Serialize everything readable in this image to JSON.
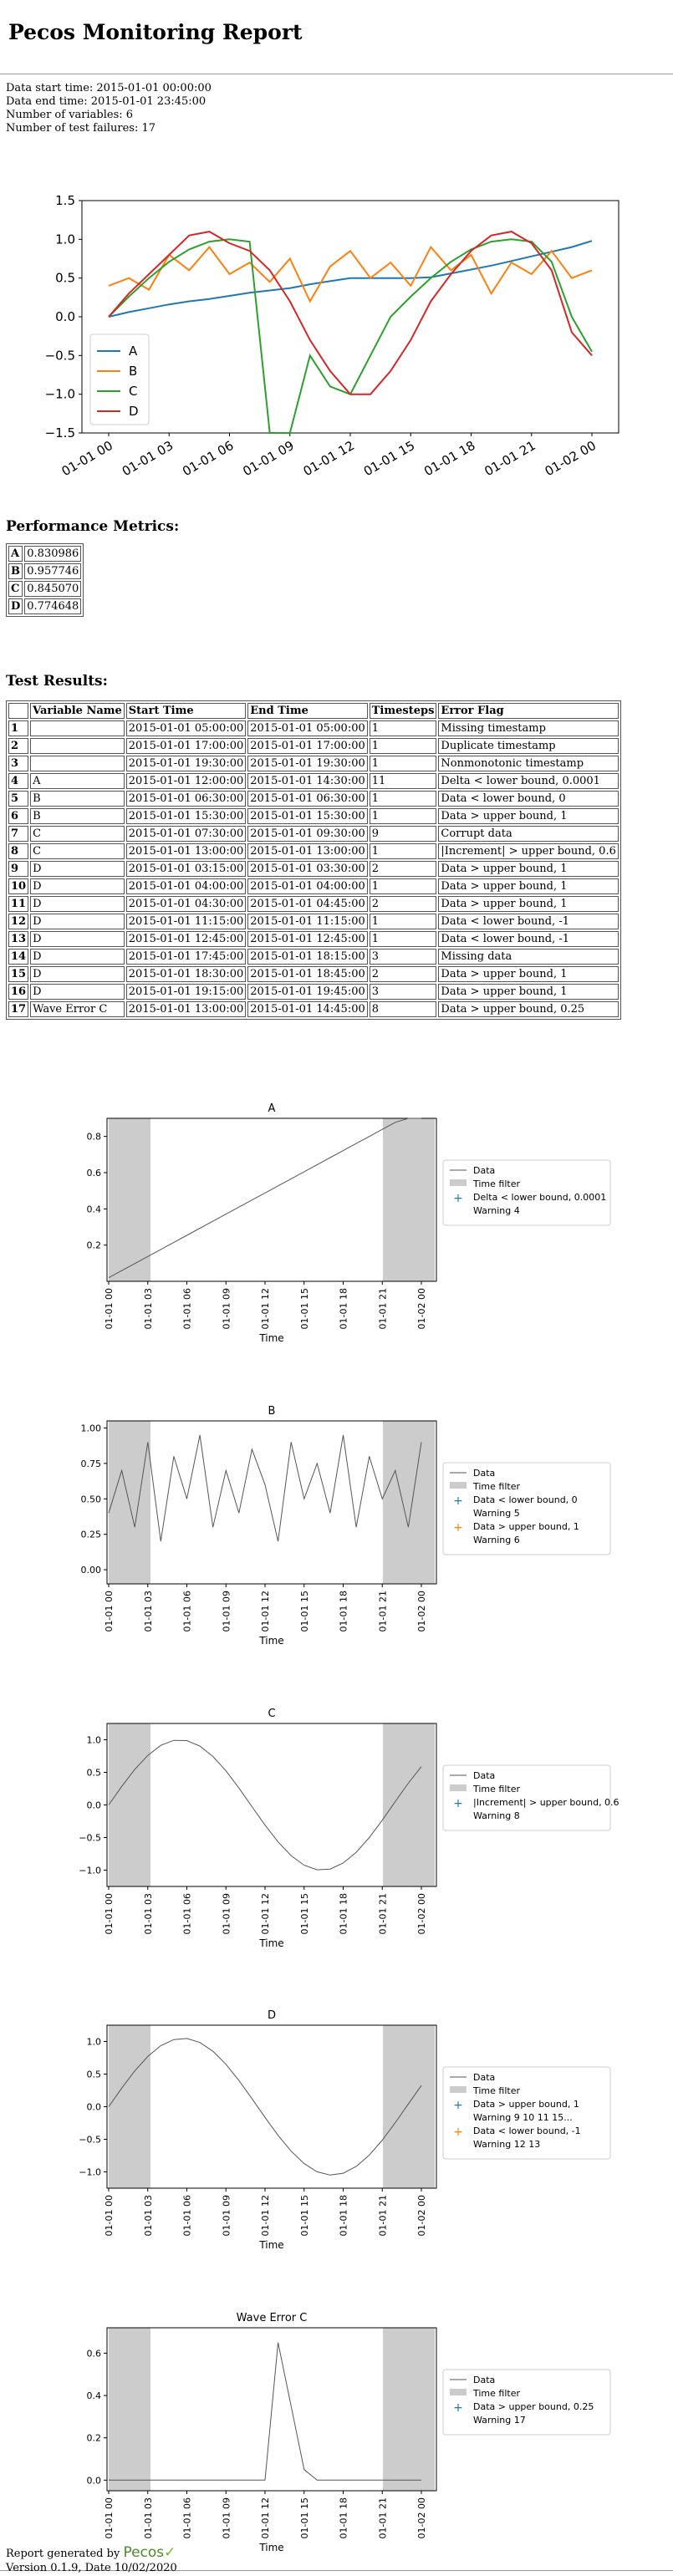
{
  "report_title": "Pecos Monitoring Report",
  "summary": {
    "start": "Data start time: 2015-01-01 00:00:00",
    "end": "Data end time: 2015-01-01 23:45:00",
    "variables": "Number of variables: 6",
    "failures": "Number of test failures: 17"
  },
  "performance": {
    "heading": "Performance Metrics:",
    "rows": [
      {
        "name": "A",
        "value": "0.830986"
      },
      {
        "name": "B",
        "value": "0.957746"
      },
      {
        "name": "C",
        "value": "0.845070"
      },
      {
        "name": "D",
        "value": "0.774648"
      }
    ]
  },
  "tests": {
    "heading": "Test Results:",
    "columns": [
      "",
      "Variable Name",
      "Start Time",
      "End Time",
      "Timesteps",
      "Error Flag"
    ],
    "rows": [
      [
        "1",
        "",
        "2015-01-01 05:00:00",
        "2015-01-01 05:00:00",
        "1",
        "Missing timestamp"
      ],
      [
        "2",
        "",
        "2015-01-01 17:00:00",
        "2015-01-01 17:00:00",
        "1",
        "Duplicate timestamp"
      ],
      [
        "3",
        "",
        "2015-01-01 19:30:00",
        "2015-01-01 19:30:00",
        "1",
        "Nonmonotonic timestamp"
      ],
      [
        "4",
        "A",
        "2015-01-01 12:00:00",
        "2015-01-01 14:30:00",
        "11",
        "Delta < lower bound, 0.0001"
      ],
      [
        "5",
        "B",
        "2015-01-01 06:30:00",
        "2015-01-01 06:30:00",
        "1",
        "Data < lower bound, 0"
      ],
      [
        "6",
        "B",
        "2015-01-01 15:30:00",
        "2015-01-01 15:30:00",
        "1",
        "Data > upper bound, 1"
      ],
      [
        "7",
        "C",
        "2015-01-01 07:30:00",
        "2015-01-01 09:30:00",
        "9",
        "Corrupt data"
      ],
      [
        "8",
        "C",
        "2015-01-01 13:00:00",
        "2015-01-01 13:00:00",
        "1",
        "|Increment| > upper bound, 0.6"
      ],
      [
        "9",
        "D",
        "2015-01-01 03:15:00",
        "2015-01-01 03:30:00",
        "2",
        "Data > upper bound, 1"
      ],
      [
        "10",
        "D",
        "2015-01-01 04:00:00",
        "2015-01-01 04:00:00",
        "1",
        "Data > upper bound, 1"
      ],
      [
        "11",
        "D",
        "2015-01-01 04:30:00",
        "2015-01-01 04:45:00",
        "2",
        "Data > upper bound, 1"
      ],
      [
        "12",
        "D",
        "2015-01-01 11:15:00",
        "2015-01-01 11:15:00",
        "1",
        "Data < lower bound, -1"
      ],
      [
        "13",
        "D",
        "2015-01-01 12:45:00",
        "2015-01-01 12:45:00",
        "1",
        "Data < lower bound, -1"
      ],
      [
        "14",
        "D",
        "2015-01-01 17:45:00",
        "2015-01-01 18:15:00",
        "3",
        "Missing data"
      ],
      [
        "15",
        "D",
        "2015-01-01 18:30:00",
        "2015-01-01 18:45:00",
        "2",
        "Data > upper bound, 1"
      ],
      [
        "16",
        "D",
        "2015-01-01 19:15:00",
        "2015-01-01 19:45:00",
        "3",
        "Data > upper bound, 1"
      ],
      [
        "17",
        "Wave Error C",
        "2015-01-01 13:00:00",
        "2015-01-01 14:45:00",
        "8",
        "Data > upper bound, 0.25"
      ]
    ]
  },
  "footer": {
    "generated": "Report generated by",
    "brand": "Pecos",
    "version": "Version 0.1.9, Date 10/02/2020"
  },
  "colors": {
    "A": "#1f77b4",
    "B": "#ff7f0e",
    "C": "#2ca02c",
    "D": "#d62728",
    "data": "#555555",
    "filter": "#cccccc"
  },
  "chart_data": [
    {
      "type": "line",
      "x_ticks": [
        "01-01 00",
        "01-01 03",
        "01-01 06",
        "01-01 09",
        "01-01 12",
        "01-01 15",
        "01-01 18",
        "01-01 21",
        "01-02 00"
      ],
      "ylim": [
        -1.5,
        1.5
      ],
      "y_ticks": [
        "1.5",
        "1.0",
        "0.5",
        "0.0",
        "−0.5",
        "−1.0",
        "−1.5"
      ],
      "legend": "lower-left",
      "series": [
        {
          "name": "A",
          "color": "#1f77b4",
          "values": [
            0,
            0.06,
            0.11,
            0.16,
            0.2,
            0.23,
            0.27,
            0.31,
            0.34,
            0.37,
            0.42,
            0.46,
            0.5,
            0.5,
            0.5,
            0.5,
            0.51,
            0.56,
            0.61,
            0.66,
            0.72,
            0.78,
            0.84,
            0.9,
            0.98
          ]
        },
        {
          "name": "B",
          "color": "#ff7f0e",
          "values": [
            0.4,
            0.5,
            0.35,
            0.8,
            0.6,
            0.9,
            0.55,
            0.7,
            0.45,
            0.75,
            0.2,
            0.65,
            0.85,
            0.5,
            0.7,
            0.4,
            0.9,
            0.6,
            0.8,
            0.3,
            0.7,
            0.55,
            0.85,
            0.5,
            0.6
          ]
        },
        {
          "name": "C",
          "color": "#2ca02c",
          "values": [
            0,
            0.26,
            0.5,
            0.71,
            0.87,
            0.97,
            1,
            0.97,
            -1.6,
            -1.6,
            -0.5,
            -0.9,
            -1.0,
            -0.5,
            0.0,
            0.26,
            0.5,
            0.71,
            0.87,
            0.97,
            1,
            0.97,
            0.71,
            0.0,
            -0.45
          ]
        },
        {
          "name": "D",
          "color": "#d62728",
          "values": [
            0,
            0.3,
            0.55,
            0.8,
            1.05,
            1.1,
            0.95,
            0.85,
            0.6,
            0.2,
            -0.3,
            -0.7,
            -1.0,
            -1.0,
            -0.7,
            -0.3,
            0.2,
            0.55,
            0.85,
            1.05,
            1.1,
            0.95,
            0.6,
            -0.2,
            -0.5
          ]
        }
      ]
    },
    {
      "type": "line",
      "title": "A",
      "xlabel": "Time",
      "ylim": [
        0,
        0.9
      ],
      "y_ticks": [
        "0.8",
        "0.6",
        "0.4",
        "0.2"
      ],
      "x_ticks": [
        "01-01 00",
        "01-01 03",
        "01-01 06",
        "01-01 09",
        "01-01 12",
        "01-01 15",
        "01-01 18",
        "01-01 21",
        "01-02 00"
      ],
      "legend": [
        "Data",
        "Time filter",
        "Delta < lower bound, 0.0001\nWarning 4"
      ]
    },
    {
      "type": "line",
      "title": "B",
      "xlabel": "Time",
      "ylim": [
        -0.1,
        1.05
      ],
      "y_ticks": [
        "1.00",
        "0.75",
        "0.50",
        "0.25",
        "0.00"
      ],
      "x_ticks": [
        "01-01 00",
        "01-01 03",
        "01-01 06",
        "01-01 09",
        "01-01 12",
        "01-01 15",
        "01-01 18",
        "01-01 21",
        "01-02 00"
      ],
      "legend": [
        "Data",
        "Time filter",
        "Data < lower bound, 0\nWarning 5",
        "Data > upper bound, 1\nWarning 6"
      ]
    },
    {
      "type": "line",
      "title": "C",
      "xlabel": "Time",
      "ylim": [
        -1.25,
        1.25
      ],
      "y_ticks": [
        "1.0",
        "0.5",
        "0.0",
        "−0.5",
        "−1.0"
      ],
      "x_ticks": [
        "01-01 00",
        "01-01 03",
        "01-01 06",
        "01-01 09",
        "01-01 12",
        "01-01 15",
        "01-01 18",
        "01-01 21",
        "01-02 00"
      ],
      "legend": [
        "Data",
        "Time filter",
        "|Increment| > upper bound, 0.6\nWarning 8"
      ]
    },
    {
      "type": "line",
      "title": "D",
      "xlabel": "Time",
      "ylim": [
        -1.25,
        1.25
      ],
      "y_ticks": [
        "1.0",
        "0.5",
        "0.0",
        "−0.5",
        "−1.0"
      ],
      "x_ticks": [
        "01-01 00",
        "01-01 03",
        "01-01 06",
        "01-01 09",
        "01-01 12",
        "01-01 15",
        "01-01 18",
        "01-01 21",
        "01-02 00"
      ],
      "legend": [
        "Data",
        "Time filter",
        "Data > upper bound, 1\nWarning  9 10 11 15...",
        "Data < lower bound, -1\nWarning 12 13"
      ]
    },
    {
      "type": "line",
      "title": "Wave Error C",
      "xlabel": "Time",
      "ylim": [
        -0.05,
        0.72
      ],
      "y_ticks": [
        "0.6",
        "0.4",
        "0.2",
        "0.0"
      ],
      "x_ticks": [
        "01-01 00",
        "01-01 03",
        "01-01 06",
        "01-01 09",
        "01-01 12",
        "01-01 15",
        "01-01 18",
        "01-01 21",
        "01-02 00"
      ],
      "legend": [
        "Data",
        "Time filter",
        "Data > upper bound, 0.25\nWarning 17"
      ]
    }
  ]
}
